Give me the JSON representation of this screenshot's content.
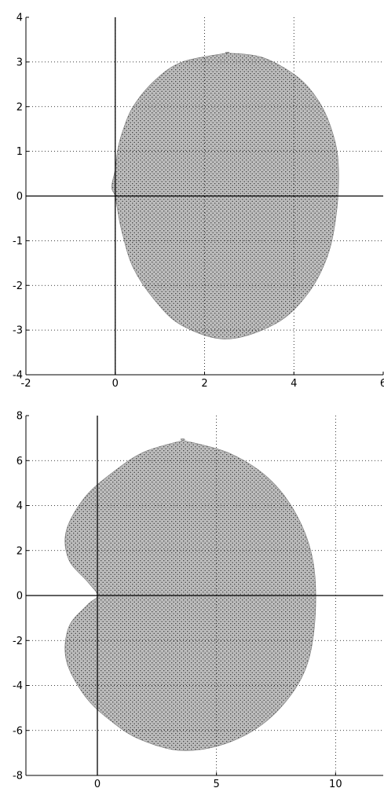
{
  "chart_data": [
    {
      "type": "area",
      "title": "",
      "xlabel": "",
      "ylabel": "",
      "xlim": [
        -2,
        6
      ],
      "ylim": [
        -4,
        4
      ],
      "grid": true,
      "xticks": [
        "-2",
        "0",
        "2",
        "4",
        "6"
      ],
      "yticks": [
        "4",
        "3",
        "2",
        "1",
        "0",
        "-1",
        "-2",
        "-3",
        "-4"
      ],
      "reference_lines": {
        "x": 0,
        "y": 0
      },
      "region_boundary": {
        "x": [
          2.5,
          3.3,
          4.1,
          4.6,
          4.9,
          5.0,
          4.95,
          4.75,
          4.3,
          3.6,
          2.5,
          1.5,
          0.9,
          0.4,
          0.15,
          0.05,
          0.0,
          -0.08,
          0.0,
          0.05,
          0.15,
          0.4,
          0.9,
          1.5,
          2.5
        ],
        "y": [
          3.2,
          3.1,
          2.65,
          2.05,
          1.3,
          0.6,
          -0.4,
          -1.35,
          -2.2,
          -2.85,
          -3.2,
          -2.9,
          -2.35,
          -1.6,
          -0.8,
          -0.3,
          0.0,
          0.2,
          0.6,
          1.0,
          1.4,
          2.0,
          2.6,
          3.0,
          3.2
        ]
      }
    },
    {
      "type": "area",
      "title": "",
      "xlabel": "",
      "ylabel": "",
      "xlim": [
        -3,
        12
      ],
      "ylim": [
        -8,
        8
      ],
      "grid": true,
      "xticks": [
        "0",
        "5",
        "10"
      ],
      "xtick_values": [
        0,
        5,
        10
      ],
      "yticks": [
        "8",
        "6",
        "4",
        "2",
        "0",
        "-2",
        "-4",
        "-6",
        "-8"
      ],
      "reference_lines": {
        "x": 0,
        "y": 0
      },
      "region_boundary": {
        "x": [
          3.6,
          5.6,
          7.3,
          8.5,
          9.1,
          9.1,
          8.6,
          7.3,
          5.6,
          3.6,
          1.8,
          0.6,
          -0.5,
          -1.3,
          -1.2,
          -0.4,
          0.0,
          -0.4,
          -1.2,
          -1.3,
          -0.5,
          0.8,
          2.0,
          3.6
        ],
        "y": [
          6.9,
          6.3,
          5.1,
          3.3,
          1.2,
          -1.5,
          -3.6,
          -5.4,
          -6.5,
          -6.9,
          -6.4,
          -5.6,
          -4.5,
          -2.9,
          -1.4,
          -0.4,
          0.0,
          0.6,
          1.6,
          2.9,
          4.4,
          5.6,
          6.4,
          6.9
        ]
      }
    }
  ]
}
